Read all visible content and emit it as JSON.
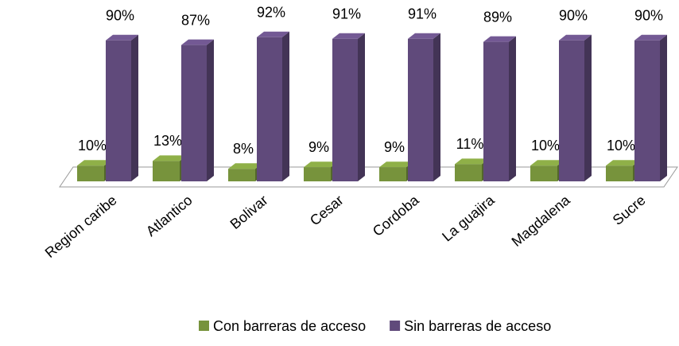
{
  "chart_data": {
    "type": "bar",
    "categories": [
      "Region caribe",
      "Atlantico",
      "Bolivar",
      "Cesar",
      "Cordoba",
      "La guajira",
      "Magdalena",
      "Sucre"
    ],
    "series": [
      {
        "name": "Con barreras de acceso",
        "color": "#77933c",
        "values": [
          10,
          13,
          8,
          9,
          9,
          11,
          10,
          10
        ],
        "value_labels": [
          "10%",
          "13%",
          "8%",
          "9%",
          "9%",
          "11%",
          "10%",
          "10%"
        ]
      },
      {
        "name": "Sin barreras de acceso",
        "color": "#604a7b",
        "values": [
          90,
          87,
          92,
          91,
          91,
          89,
          90,
          90
        ],
        "value_labels": [
          "90%",
          "87%",
          "92%",
          "91%",
          "91%",
          "89%",
          "90%",
          "90%"
        ]
      }
    ]
  }
}
